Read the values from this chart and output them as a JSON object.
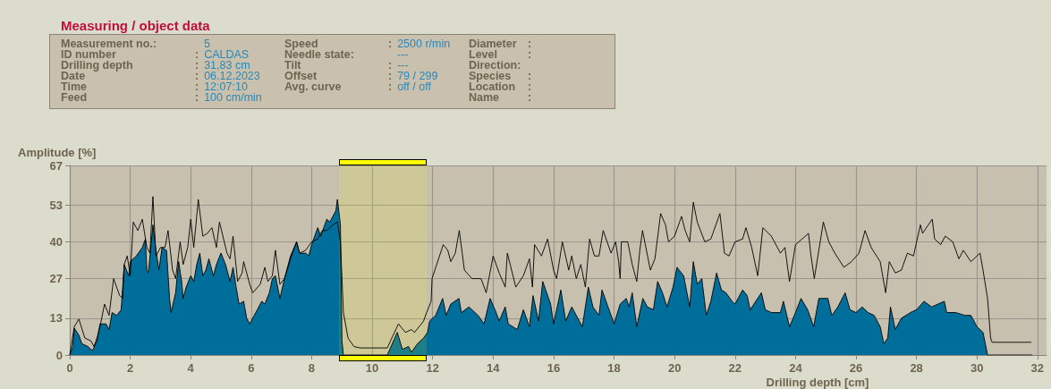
{
  "chart_data": {
    "type": "area",
    "title": "Measuring / object data",
    "annotations": [
      "Measurement no.: 5",
      "Speed : 2500 r/min",
      "Diameter :",
      "ID number : CALDAS",
      "Needle state: ---",
      "Level :",
      "Drilling depth : 31,83 cm",
      "Tilt : ---",
      "Direction:",
      "Date : 06.12.2023",
      "Offset : 79 / 299",
      "Species :",
      "Time : 12:07:10",
      "Avg. curve : off / off",
      "Location :",
      "Feed : 100 cm/min",
      "Name :"
    ],
    "xlabel": "Drilling depth [cm]",
    "ylabel": "Amplitude [%]",
    "xlim": [
      0,
      32.3
    ],
    "xticks": [
      0,
      2,
      4,
      6,
      8,
      10,
      12,
      14,
      16,
      18,
      20,
      22,
      24,
      26,
      28,
      30,
      32
    ],
    "ylim": [
      0,
      67
    ],
    "yticks": [
      0,
      13,
      27,
      40,
      53,
      67
    ],
    "grid": true,
    "marker": "none",
    "bands": [
      {
        "axis": "x",
        "from": 8.9,
        "to": 11.8,
        "color": "#ffff00"
      }
    ],
    "series": [
      {
        "type": "area",
        "color": "#006e9b",
        "x": [
          0,
          0.1,
          0.15,
          0.3,
          0.4,
          0.6,
          0.75,
          0.9,
          1.0,
          1.2,
          1.3,
          1.4,
          1.55,
          1.7,
          1.8,
          1.95,
          2.0,
          2.2,
          2.4,
          2.5,
          2.55,
          2.6,
          2.75,
          2.85,
          2.95,
          3.05,
          3.2,
          3.3,
          3.35,
          3.5,
          3.6,
          3.7,
          3.75,
          3.85,
          4.0,
          4.1,
          4.2,
          4.3,
          4.4,
          4.5,
          4.6,
          4.75,
          4.85,
          5.0,
          5.15,
          5.3,
          5.4,
          5.5,
          5.6,
          5.75,
          5.85,
          5.95,
          6.1,
          6.2,
          6.35,
          6.45,
          6.6,
          6.7,
          6.8,
          6.95,
          7.1,
          7.3,
          7.5,
          7.6,
          7.8,
          7.9,
          8.0,
          8.2,
          8.3,
          8.5,
          8.6,
          8.8,
          8.85,
          8.95,
          9.0,
          9.05,
          10.5,
          10.83,
          11.0,
          11.2,
          11.3,
          11.5,
          11.7,
          11.83,
          11.9,
          12.1,
          12.33,
          12.45,
          12.6,
          12.87,
          12.95,
          13.2,
          13.5,
          13.7,
          13.9,
          14.1,
          14.2,
          14.4,
          14.5,
          14.8,
          15.0,
          15.2,
          15.32,
          15.5,
          15.64,
          15.9,
          16.0,
          16.24,
          16.4,
          16.6,
          16.8,
          16.95,
          17.15,
          17.3,
          17.5,
          17.6,
          17.8,
          18.0,
          18.2,
          18.4,
          18.5,
          18.6,
          18.75,
          18.95,
          19.1,
          19.3,
          19.44,
          19.6,
          19.75,
          19.95,
          20.08,
          20.3,
          20.5,
          20.62,
          20.75,
          20.9,
          21.05,
          21.2,
          21.39,
          21.55,
          21.7,
          21.9,
          22.0,
          22.25,
          22.4,
          22.5,
          22.87,
          23.0,
          23.2,
          23.5,
          23.6,
          23.8,
          24.0,
          24.18,
          24.4,
          24.6,
          24.77,
          25.07,
          25.2,
          25.4,
          25.64,
          25.8,
          26.0,
          26.2,
          26.4,
          26.6,
          26.8,
          26.92,
          27.05,
          27.14,
          27.3,
          27.5,
          27.8,
          28.0,
          28.25,
          28.5,
          28.92,
          29.0,
          29.3,
          29.6,
          29.8,
          30.0,
          30.2,
          30.35,
          31.83
        ],
        "values": [
          0,
          3,
          9.5,
          7,
          4,
          3,
          1.5,
          5,
          11,
          11,
          9,
          15,
          14,
          16,
          32,
          28,
          33,
          35,
          38,
          41,
          30,
          29,
          46,
          37,
          30,
          38,
          37,
          20,
          15,
          22,
          33,
          26,
          20,
          24,
          28,
          26,
          32,
          36,
          28,
          30,
          34,
          28,
          32,
          36,
          32,
          26,
          31,
          24,
          18,
          19,
          13,
          11,
          14,
          16,
          19,
          18,
          22,
          27,
          28,
          20,
          27,
          35,
          40,
          36,
          36,
          35,
          39,
          45,
          42,
          48,
          47,
          51,
          55,
          46,
          5,
          0,
          0,
          8,
          2,
          3,
          1,
          4,
          6,
          8,
          12,
          14,
          20,
          14,
          18,
          20,
          15,
          17,
          14,
          11,
          20,
          15,
          12,
          17,
          11,
          9,
          16,
          10,
          21,
          12,
          26,
          18,
          11,
          23,
          12,
          17,
          13,
          10,
          24,
          17,
          14,
          23,
          17,
          11,
          18,
          20,
          17,
          22,
          10,
          20,
          17,
          16,
          26,
          22,
          17,
          24,
          31,
          28,
          17,
          33,
          25,
          27,
          14,
          19,
          29,
          23,
          22,
          19,
          18,
          23,
          21,
          16,
          22,
          16,
          15,
          15,
          19,
          10,
          15,
          20,
          16,
          10,
          20,
          20,
          14,
          17,
          22,
          16,
          15,
          17,
          15,
          14,
          10,
          4,
          6,
          17,
          9,
          13,
          15,
          16,
          19,
          17,
          19,
          15,
          15,
          14,
          14,
          10,
          8,
          0,
          0
        ]
      },
      {
        "type": "line",
        "color": "#000000",
        "x": [
          0,
          0.15,
          0.3,
          0.5,
          0.7,
          0.8,
          0.9,
          1.0,
          1.15,
          1.3,
          1.45,
          1.65,
          1.75,
          1.8,
          1.9,
          2.0,
          2.1,
          2.25,
          2.4,
          2.55,
          2.65,
          2.75,
          2.85,
          3.0,
          3.15,
          3.25,
          3.4,
          3.5,
          3.65,
          3.75,
          3.9,
          4.0,
          4.1,
          4.25,
          4.4,
          4.55,
          4.7,
          4.85,
          4.95,
          5.2,
          5.3,
          5.4,
          5.55,
          5.7,
          5.75,
          5.95,
          6.05,
          6.3,
          6.45,
          6.55,
          6.7,
          6.8,
          6.95,
          7.1,
          7.3,
          7.5,
          7.6,
          7.8,
          8.0,
          8.2,
          8.35,
          8.5,
          8.7,
          8.85,
          8.95,
          9.05,
          9.2,
          9.4,
          9.6,
          10.0,
          10.5,
          10.65,
          10.87,
          11.1,
          11.3,
          11.4,
          11.7,
          11.8,
          11.95,
          11.98,
          12.35,
          12.5,
          12.6,
          12.75,
          12.88,
          13.05,
          13.3,
          13.6,
          13.77,
          14.0,
          14.2,
          14.4,
          14.47,
          14.75,
          15.0,
          15.2,
          15.3,
          15.37,
          15.6,
          15.8,
          16.0,
          16.1,
          16.29,
          16.5,
          16.6,
          16.75,
          16.9,
          17.05,
          17.19,
          17.35,
          17.5,
          17.64,
          17.9,
          18.05,
          18.15,
          18.2,
          18.24,
          18.45,
          18.6,
          18.75,
          18.85,
          18.94,
          19.2,
          19.35,
          19.54,
          19.7,
          19.8,
          20.0,
          20.23,
          20.35,
          20.5,
          20.62,
          20.75,
          21.0,
          21.2,
          21.5,
          21.65,
          21.8,
          22.0,
          22.25,
          22.36,
          22.55,
          22.75,
          22.92,
          23.2,
          23.5,
          23.65,
          23.8,
          24.0,
          24.43,
          24.5,
          24.62,
          24.92,
          25.1,
          25.3,
          25.6,
          25.85,
          26.1,
          26.3,
          26.5,
          26.8,
          26.98,
          27.1,
          27.3,
          27.5,
          27.7,
          27.9,
          28.13,
          28.2,
          28.52,
          28.6,
          28.8,
          28.95,
          29.2,
          29.4,
          29.55,
          29.8,
          30.1,
          30.2,
          30.35,
          30.45,
          30.5,
          31.8
        ],
        "values": [
          0,
          10,
          12.7,
          6,
          5,
          3,
          6,
          10,
          18,
          14,
          27,
          21,
          20,
          32,
          35,
          28,
          47,
          44,
          48,
          38,
          36,
          56,
          35,
          38,
          38,
          44,
          30,
          27,
          40,
          32,
          38,
          48,
          38,
          55,
          42,
          43,
          45,
          38,
          47,
          36,
          34,
          42,
          26,
          29,
          33,
          25,
          22,
          25,
          31,
          26,
          28,
          37,
          25,
          27,
          34,
          40,
          36,
          37,
          40,
          41,
          44,
          44,
          46,
          47,
          40,
          15,
          6,
          3,
          2.5,
          2.5,
          2.5,
          6,
          11,
          8,
          9,
          8,
          12,
          15,
          19,
          27,
          39,
          37,
          33,
          36,
          44,
          30,
          27,
          27,
          22,
          35,
          29,
          24,
          36,
          24,
          28,
          34,
          24,
          39,
          35,
          41,
          30,
          27,
          40,
          30,
          35,
          27,
          32,
          24,
          41,
          35,
          35,
          44,
          36,
          40,
          33,
          27,
          40,
          40,
          32,
          26,
          37,
          44,
          30,
          34,
          50,
          46,
          40,
          42,
          49,
          44,
          40,
          54,
          47,
          40,
          41,
          50,
          36,
          35,
          40,
          41,
          45,
          38,
          28,
          45,
          42,
          36,
          38,
          26,
          39,
          43,
          36,
          27,
          47,
          40,
          36,
          31,
          33,
          36,
          44,
          38,
          33,
          22,
          33,
          29,
          30,
          36,
          35,
          46,
          43,
          48,
          41,
          39,
          42,
          40,
          34,
          37,
          33,
          36,
          30,
          20,
          6,
          4.5,
          4.5
        ]
      }
    ]
  }
}
